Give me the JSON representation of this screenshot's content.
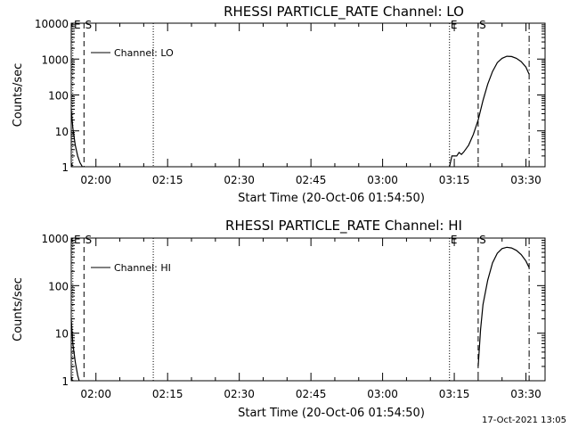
{
  "footer_timestamp": "17-Oct-2021 13:05",
  "chart_data": [
    {
      "type": "line",
      "title": "RHESSI PARTICLE_RATE Channel: LO",
      "xlabel": "Start Time (20-Oct-06 01:54:50)",
      "ylabel": "Counts/sec",
      "yscale": "log",
      "ylim": [
        1,
        10000
      ],
      "yticks": [
        {
          "value": 1,
          "label": "1"
        },
        {
          "value": 10,
          "label": "10"
        },
        {
          "value": 100,
          "label": "100"
        },
        {
          "value": 1000,
          "label": "1000"
        },
        {
          "value": 10000,
          "label": "10000"
        }
      ],
      "xlim": [
        "01:54:50",
        "03:34:00"
      ],
      "xticks": [
        {
          "value": "02:00",
          "label": "02:00"
        },
        {
          "value": "02:15",
          "label": "02:15"
        },
        {
          "value": "02:30",
          "label": "02:30"
        },
        {
          "value": "02:45",
          "label": "02:45"
        },
        {
          "value": "03:00",
          "label": "03:00"
        },
        {
          "value": "03:15",
          "label": "03:15"
        },
        {
          "value": "03:30",
          "label": "03:30"
        }
      ],
      "legend": {
        "placement": "top-left",
        "entries": [
          "Channel: LO"
        ]
      },
      "series": [
        {
          "name": "Channel: LO",
          "segments": [
            {
              "x": [
                "01:54:50",
                "01:55:10",
                "01:55:40",
                "01:56:10",
                "01:56:40",
                "01:57:10"
              ],
              "y": [
                40,
                12,
                4,
                2,
                1.3,
                1
              ]
            },
            {
              "x": [
                "03:14:00",
                "03:14:30",
                "03:15:30",
                "03:16:00",
                "03:16:30",
                "03:17:00",
                "03:18:00",
                "03:19:00",
                "03:20:00",
                "03:21:00",
                "03:22:00",
                "03:23:00",
                "03:24:00",
                "03:25:00",
                "03:26:00",
                "03:27:00",
                "03:28:00",
                "03:29:00",
                "03:30:00",
                "03:30:40"
              ],
              "y": [
                1,
                2,
                2,
                2.5,
                2.2,
                2.6,
                4,
                8,
                20,
                70,
                200,
                450,
                800,
                1050,
                1200,
                1180,
                1050,
                850,
                600,
                380
              ]
            }
          ]
        }
      ],
      "event_markers": [
        {
          "x": "01:55:10",
          "style": "dotted",
          "label": "E"
        },
        {
          "x": "01:57:30",
          "style": "dashed",
          "label": "S"
        },
        {
          "x": "02:12:00",
          "style": "dotted",
          "label": ""
        },
        {
          "x": "03:14:00",
          "style": "dotted",
          "label": "E"
        },
        {
          "x": "03:20:00",
          "style": "dashed",
          "label": "S"
        },
        {
          "x": "03:30:40",
          "style": "dash-dot",
          "label": ""
        }
      ]
    },
    {
      "type": "line",
      "title": "RHESSI PARTICLE_RATE Channel: HI",
      "xlabel": "Start Time (20-Oct-06 01:54:50)",
      "ylabel": "Counts/sec",
      "yscale": "log",
      "ylim": [
        1,
        1000
      ],
      "yticks": [
        {
          "value": 1,
          "label": "1"
        },
        {
          "value": 10,
          "label": "10"
        },
        {
          "value": 100,
          "label": "100"
        },
        {
          "value": 1000,
          "label": "1000"
        }
      ],
      "xlim": [
        "01:54:50",
        "03:34:00"
      ],
      "xticks": [
        {
          "value": "02:00",
          "label": "02:00"
        },
        {
          "value": "02:15",
          "label": "02:15"
        },
        {
          "value": "02:30",
          "label": "02:30"
        },
        {
          "value": "02:45",
          "label": "02:45"
        },
        {
          "value": "03:00",
          "label": "03:00"
        },
        {
          "value": "03:15",
          "label": "03:15"
        },
        {
          "value": "03:30",
          "label": "03:30"
        }
      ],
      "legend": {
        "placement": "top-left",
        "entries": [
          "Channel: HI"
        ]
      },
      "series": [
        {
          "name": "Channel: HI",
          "segments": [
            {
              "x": [
                "01:54:50",
                "01:55:10",
                "01:55:40",
                "01:56:10",
                "01:56:30"
              ],
              "y": [
                20,
                6,
                2.5,
                1.3,
                1
              ]
            },
            {
              "x": [
                "03:20:00",
                "03:20:30",
                "03:21:00",
                "03:22:00",
                "03:23:00",
                "03:24:00",
                "03:25:00",
                "03:26:00",
                "03:27:00",
                "03:28:00",
                "03:29:00",
                "03:30:00",
                "03:30:40"
              ],
              "y": [
                2,
                12,
                40,
                130,
                300,
                480,
                600,
                640,
                620,
                550,
                450,
                330,
                240
              ]
            }
          ]
        }
      ],
      "event_markers": [
        {
          "x": "01:55:10",
          "style": "dotted",
          "label": "E"
        },
        {
          "x": "01:57:30",
          "style": "dashed",
          "label": "S"
        },
        {
          "x": "02:12:00",
          "style": "dotted",
          "label": ""
        },
        {
          "x": "03:14:00",
          "style": "dotted",
          "label": "E"
        },
        {
          "x": "03:20:00",
          "style": "dashed",
          "label": "S"
        },
        {
          "x": "03:30:40",
          "style": "dash-dot",
          "label": ""
        }
      ]
    }
  ]
}
